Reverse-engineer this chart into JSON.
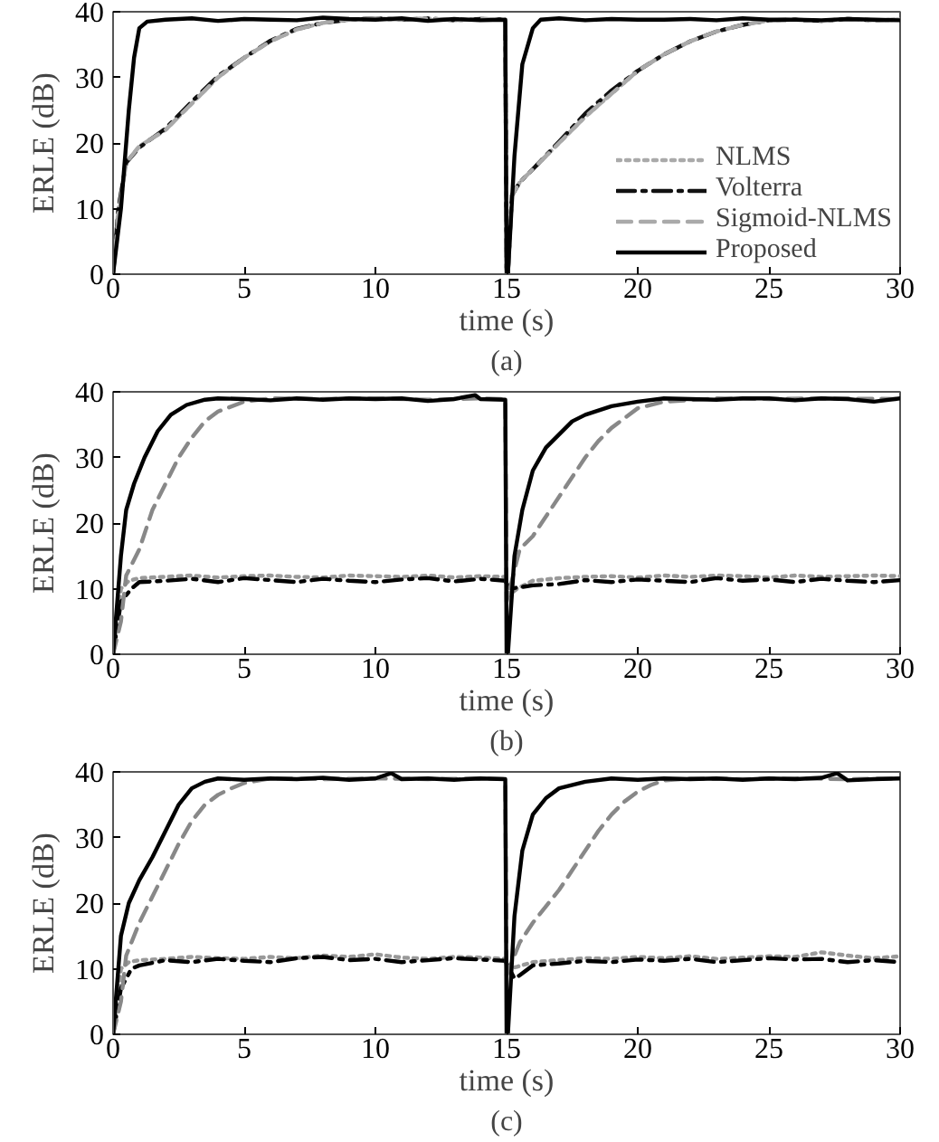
{
  "chart_data": [
    {
      "type": "line",
      "title": "(a)",
      "xlabel": "time (s)",
      "ylabel": "ERLE (dB)",
      "xlim": [
        0,
        30
      ],
      "ylim": [
        0,
        40
      ],
      "xticks": [
        0,
        5,
        10,
        15,
        20,
        25,
        30
      ],
      "yticks": [
        0,
        10,
        20,
        30,
        40
      ],
      "grid": false,
      "legend": "bottom right",
      "series": [
        {
          "name": "NLMS",
          "color": "#aaaaaa",
          "line_style": "dotted",
          "x": [
            0,
            0.2,
            0.5,
            1,
            2,
            3,
            4,
            5,
            6,
            7,
            8,
            9,
            10,
            11,
            12,
            13,
            14,
            14.95,
            15,
            15.05,
            15.2,
            15.5,
            16,
            17,
            18,
            19,
            20,
            21,
            22,
            23,
            24,
            25,
            26,
            27,
            28,
            29,
            30
          ],
          "values": [
            0,
            10,
            17,
            19.5,
            22,
            26,
            30,
            33,
            35.5,
            37.3,
            38.3,
            38.8,
            39,
            38.8,
            39,
            38.7,
            38.9,
            38.8,
            0,
            0,
            12,
            14,
            16,
            20,
            24,
            27.5,
            31,
            33.5,
            35.5,
            37,
            38,
            38.7,
            38.8,
            38.6,
            38.9,
            38.7,
            38.8
          ]
        },
        {
          "name": "Volterra",
          "color": "#111111",
          "line_style": "dashdot",
          "x": [
            0,
            0.2,
            0.5,
            1,
            2,
            3,
            4,
            5,
            6,
            7,
            8,
            9,
            10,
            11,
            12,
            13,
            14,
            14.95,
            15,
            15.05,
            15.2,
            15.5,
            16,
            17,
            18,
            19,
            20,
            21,
            22,
            23,
            24,
            25,
            26,
            27,
            28,
            29,
            30
          ],
          "values": [
            0,
            10,
            17,
            19.3,
            22.2,
            26.3,
            30.2,
            33,
            35.6,
            37.4,
            38.3,
            38.8,
            39,
            38.8,
            39,
            38.7,
            38.9,
            38.8,
            0,
            0,
            12,
            14,
            16,
            20.2,
            24.5,
            28,
            31,
            33.5,
            35.5,
            37,
            38,
            38.7,
            38.8,
            38.6,
            38.9,
            38.7,
            38.8
          ]
        },
        {
          "name": "Sigmoid-NLMS",
          "color": "#aaaaaa",
          "line_style": "dashed",
          "x": [
            0,
            0.2,
            0.5,
            1,
            2,
            3,
            4,
            5,
            6,
            7,
            8,
            9,
            10,
            11,
            12,
            13,
            14,
            14.95,
            15,
            15.05,
            15.2,
            15.5,
            16,
            17,
            18,
            19,
            20,
            21,
            22,
            23,
            24,
            25,
            26,
            27,
            28,
            29,
            30
          ],
          "values": [
            0,
            9,
            17,
            19.5,
            22,
            26,
            30,
            33,
            35.5,
            37.3,
            38.3,
            38.8,
            39,
            38.8,
            39,
            38.7,
            38.9,
            38.8,
            0,
            0,
            12,
            14,
            16,
            20,
            24,
            27.5,
            31,
            33.5,
            35.5,
            37,
            38,
            38.7,
            38.8,
            38.6,
            38.9,
            38.7,
            38.8
          ]
        },
        {
          "name": "Proposed",
          "color": "#000000",
          "line_style": "solid",
          "x": [
            0,
            0.3,
            0.6,
            0.8,
            1,
            1.3,
            2,
            3,
            4,
            5,
            6,
            7,
            8,
            9,
            10,
            11,
            12,
            13,
            14,
            14.95,
            15,
            15.05,
            15.3,
            15.6,
            16,
            16.3,
            17,
            18,
            19,
            20,
            21,
            22,
            23,
            24,
            25,
            26,
            27,
            28,
            29,
            30
          ],
          "values": [
            0,
            10,
            25,
            33,
            37.5,
            38.5,
            38.8,
            39,
            38.6,
            38.9,
            38.8,
            38.7,
            39.1,
            38.9,
            38.8,
            39,
            38.6,
            38.9,
            38.7,
            38.8,
            0,
            0,
            18,
            32,
            37.5,
            38.8,
            39,
            38.7,
            38.9,
            38.8,
            38.8,
            38.9,
            38.7,
            39,
            38.8,
            38.8,
            38.7,
            38.9,
            38.8,
            38.7
          ]
        }
      ]
    },
    {
      "type": "line",
      "title": "(b)",
      "xlabel": "time (s)",
      "ylabel": "ERLE (dB)",
      "xlim": [
        0,
        30
      ],
      "ylim": [
        0,
        40
      ],
      "xticks": [
        0,
        5,
        10,
        15,
        20,
        25,
        30
      ],
      "yticks": [
        0,
        10,
        20,
        30,
        40
      ],
      "grid": false,
      "series": [
        {
          "color": "#999999",
          "line_style": "dotted",
          "x": [
            0,
            0.3,
            0.6,
            1,
            2,
            3,
            4,
            5,
            6,
            7,
            8,
            9,
            10,
            11,
            12,
            13,
            14,
            14.95,
            15.1,
            15.4,
            16,
            17,
            18,
            19,
            20,
            21,
            22,
            23,
            24,
            25,
            26,
            27,
            28,
            29,
            30
          ],
          "values": [
            0,
            10,
            11.2,
            11.6,
            11.8,
            12,
            11.7,
            11.9,
            12,
            11.8,
            11.7,
            12,
            11.9,
            11.8,
            12,
            11.7,
            11.9,
            11.8,
            9,
            10,
            11.2,
            11.6,
            11.8,
            11.9,
            11.7,
            12,
            11.8,
            12,
            11.9,
            11.7,
            12,
            11.8,
            11.9,
            12,
            11.9
          ]
        },
        {
          "color": "#000000",
          "line_style": "dashdot",
          "x": [
            0,
            0.3,
            0.7,
            1,
            2,
            3,
            4,
            5,
            6,
            7,
            8,
            9,
            10,
            11,
            12,
            13,
            14,
            14.95,
            15.1,
            15.5,
            16,
            17,
            18,
            19,
            20,
            21,
            22,
            23,
            24,
            25,
            26,
            27,
            28,
            29,
            30
          ],
          "values": [
            0,
            8,
            10,
            11,
            11.2,
            11.5,
            11,
            11.6,
            11.3,
            11,
            11.5,
            11.2,
            11,
            11.4,
            11.6,
            11.1,
            11.5,
            11.2,
            10,
            10.2,
            10.5,
            10.7,
            11.3,
            11,
            11.4,
            11.2,
            11,
            11.6,
            11.2,
            11.4,
            11,
            11.5,
            11.2,
            11,
            11.3
          ]
        },
        {
          "color": "#888888",
          "line_style": "dashed",
          "x": [
            0,
            0.3,
            0.5,
            1,
            1.5,
            2,
            2.5,
            3,
            3.5,
            4,
            5,
            6,
            8,
            10,
            12,
            14,
            14.95,
            15,
            15.5,
            16,
            16.5,
            17,
            17.5,
            18,
            18.5,
            19,
            19.5,
            20,
            21,
            23,
            25,
            27,
            30
          ],
          "values": [
            0,
            5,
            12,
            16,
            22,
            26,
            30,
            33,
            35.5,
            37,
            38.5,
            39,
            38.9,
            39,
            38.8,
            39,
            38.9,
            8,
            16,
            18,
            21,
            24,
            27,
            30,
            32.5,
            34.5,
            36,
            37.5,
            38.5,
            39,
            38.9,
            39,
            38.9
          ]
        },
        {
          "color": "#000000",
          "line_style": "solid",
          "x": [
            0,
            0.3,
            0.5,
            0.8,
            1.2,
            1.7,
            2.2,
            2.8,
            3.5,
            4,
            5,
            6,
            7,
            8,
            9,
            10,
            11,
            12,
            13,
            13.8,
            14,
            14.95,
            15,
            15.05,
            15.3,
            15.6,
            16,
            16.5,
            17,
            17.5,
            18,
            19,
            20,
            21,
            22,
            23,
            24,
            25,
            26,
            27,
            28,
            29,
            30
          ],
          "values": [
            0,
            15,
            22,
            26,
            30,
            34,
            36.5,
            38,
            38.8,
            39,
            38.9,
            38.7,
            39,
            38.8,
            39,
            38.9,
            39,
            38.6,
            38.9,
            39.5,
            38.9,
            38.8,
            0,
            0,
            15,
            22,
            28,
            31.5,
            33.5,
            35.5,
            36.5,
            37.8,
            38.5,
            39,
            38.9,
            38.8,
            39,
            39,
            38.7,
            39,
            38.9,
            38.5,
            39
          ]
        }
      ]
    },
    {
      "type": "line",
      "title": "(c)",
      "xlabel": "time (s)",
      "ylabel": "ERLE (dB)",
      "xlim": [
        0,
        30
      ],
      "ylim": [
        0,
        40
      ],
      "xticks": [
        0,
        5,
        10,
        15,
        20,
        25,
        30
      ],
      "yticks": [
        0,
        10,
        20,
        30,
        40
      ],
      "grid": false,
      "series": [
        {
          "color": "#999999",
          "line_style": "dotted",
          "x": [
            0,
            0.3,
            0.6,
            1,
            2,
            3,
            4,
            5,
            6,
            7,
            8,
            9,
            10,
            11,
            12,
            13,
            14,
            14.95,
            15.1,
            15.4,
            16,
            17,
            18,
            19,
            20,
            21,
            22,
            23,
            24,
            25,
            26,
            27,
            28,
            29,
            30
          ],
          "values": [
            0,
            10,
            11,
            11.3,
            11.5,
            11.8,
            11.6,
            11.5,
            11.8,
            11.6,
            12,
            11.8,
            12.2,
            11.7,
            11.5,
            11.8,
            11.7,
            11.5,
            10,
            10.3,
            11,
            11.3,
            11.6,
            11.5,
            11.8,
            11.6,
            11.9,
            11.5,
            11.7,
            11.9,
            11.8,
            12.5,
            12,
            11.6,
            11.9
          ]
        },
        {
          "color": "#000000",
          "line_style": "dashdot",
          "x": [
            0,
            0.3,
            0.7,
            1,
            2,
            3,
            4,
            5,
            6,
            7,
            8,
            9,
            10,
            11,
            12,
            13,
            14,
            14.95,
            15.3,
            15.5,
            16,
            17,
            18,
            19,
            20,
            21,
            22,
            23,
            24,
            25,
            26,
            27,
            28,
            29,
            30
          ],
          "values": [
            0,
            7,
            10,
            10.5,
            11.3,
            11,
            11.5,
            11.2,
            11,
            11.6,
            11.8,
            11.3,
            11.5,
            11,
            11.3,
            11.6,
            11.4,
            11.2,
            8.5,
            9,
            10.5,
            10.8,
            11.2,
            11,
            11.4,
            11.2,
            11.5,
            11,
            11.3,
            11.6,
            11.4,
            11.5,
            11,
            11.3,
            11
          ]
        },
        {
          "color": "#888888",
          "line_style": "dashed",
          "x": [
            0,
            0.3,
            0.5,
            1,
            1.5,
            2,
            2.5,
            3,
            3.5,
            4,
            4.5,
            5,
            6,
            8,
            10,
            12,
            14,
            14.95,
            15,
            15.5,
            16,
            16.5,
            17,
            17.5,
            18,
            18.5,
            19,
            19.5,
            20,
            20.5,
            21,
            22,
            24,
            26,
            28,
            30
          ],
          "values": [
            0,
            5,
            12,
            17,
            21,
            25,
            29,
            32.5,
            35,
            36.5,
            37.5,
            38.3,
            39,
            38.9,
            39,
            38.9,
            39,
            38.9,
            9,
            14,
            17,
            19.5,
            22,
            25,
            28,
            31,
            33.5,
            35.5,
            37,
            38,
            38.7,
            39,
            38.9,
            39,
            38.9,
            39
          ]
        },
        {
          "color": "#000000",
          "line_style": "solid",
          "x": [
            0,
            0.3,
            0.6,
            1,
            1.5,
            2,
            2.5,
            3,
            3.5,
            4,
            5,
            6,
            7,
            8,
            9,
            10,
            10.6,
            11,
            12,
            13,
            14,
            14.95,
            15,
            15.05,
            15.3,
            15.6,
            16,
            16.5,
            17,
            18,
            19,
            20,
            21,
            22,
            23,
            24,
            25,
            26,
            27,
            27.6,
            28,
            29,
            30
          ],
          "values": [
            0,
            15,
            20,
            23.5,
            27,
            31,
            35,
            37.5,
            38.5,
            39,
            38.8,
            39,
            38.9,
            39.1,
            38.8,
            39,
            39.8,
            38.9,
            39,
            38.8,
            39,
            38.9,
            0,
            0,
            18,
            28,
            33.5,
            36,
            37.5,
            38.5,
            39,
            38.8,
            39,
            38.9,
            39,
            38.8,
            39,
            38.9,
            39.1,
            39.8,
            38.7,
            38.9,
            39
          ]
        }
      ]
    }
  ]
}
